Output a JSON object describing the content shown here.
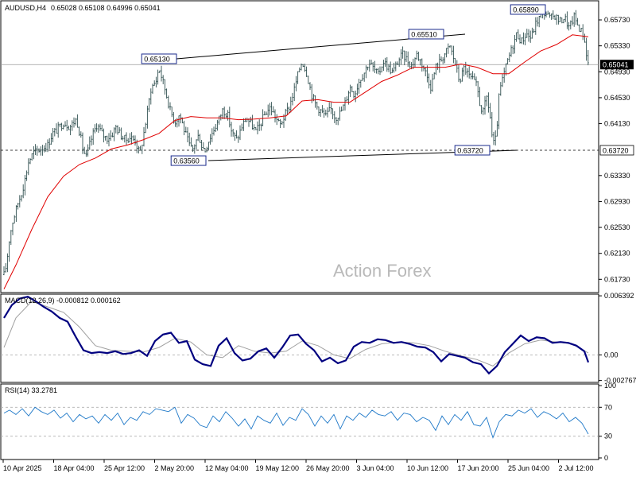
{
  "header": {
    "symbol_label": "AUDUSD,H4",
    "ohlc_label": "0.65028 0.65108 0.64996 0.65041"
  },
  "watermark": "Action Forex",
  "colors": {
    "candles": "#2f4f4f",
    "ma": "#e00000",
    "macd_line": "#000080",
    "macd_signal": "#a0a0a0",
    "rsi": "#1e78c8",
    "trendline": "#000000",
    "current_price_bg": "#000000"
  },
  "chart_data": [
    {
      "type": "candlestick",
      "panel": "price",
      "title": "AUDUSD,H4",
      "x_labels": [
        "10 Apr 2025",
        "18 Apr 04:00",
        "25 Apr 12:00",
        "2 May 20:00",
        "12 May 04:00",
        "19 May 12:00",
        "26 May 20:00",
        "3 Jun 04:00",
        "10 Jun 12:00",
        "17 Jun 20:00",
        "25 Jun 04:00",
        "2 Jul 12:00"
      ],
      "y_ticks": [
        "0.65730",
        "0.65330",
        "0.64930",
        "0.64530",
        "0.64130",
        "0.63330",
        "0.62930",
        "0.62530",
        "0.62130",
        "0.61730"
      ],
      "ylim": [
        0.6155,
        0.66
      ],
      "close_path_x": [
        0,
        4,
        8,
        12,
        16,
        22,
        28,
        32,
        36,
        42,
        48,
        54,
        60,
        66,
        72,
        80,
        88,
        96,
        100,
        104,
        108,
        114,
        118,
        122,
        128,
        134,
        140,
        146,
        152,
        158,
        164,
        170,
        176,
        180,
        184,
        190,
        196,
        200,
        204,
        208,
        214,
        220,
        226,
        232,
        238,
        242,
        246,
        250,
        254,
        258,
        262,
        268,
        274,
        280,
        286,
        292,
        298,
        304,
        310,
        316,
        322,
        328,
        334,
        340,
        346,
        352,
        358,
        364,
        370,
        376,
        380,
        386,
        392,
        398,
        404,
        410,
        416,
        422,
        428,
        434,
        440,
        446,
        452,
        458,
        464,
        470,
        476,
        482,
        488,
        494,
        500,
        506,
        512,
        518,
        524,
        530,
        536,
        542,
        548,
        554,
        560,
        566,
        572,
        578,
        584,
        590,
        596,
        600,
        604,
        608,
        612,
        616,
        620,
        624,
        628,
        632,
        638,
        644,
        650,
        656,
        662,
        668,
        674,
        680,
        686,
        692,
        698,
        704,
        710,
        716,
        722,
        728,
        734,
        740
      ],
      "close_path_y": [
        0.6168,
        0.6175,
        0.6195,
        0.6238,
        0.6262,
        0.6288,
        0.631,
        0.633,
        0.6355,
        0.6368,
        0.6372,
        0.6376,
        0.638,
        0.6398,
        0.6404,
        0.6415,
        0.6408,
        0.642,
        0.64,
        0.6376,
        0.636,
        0.6386,
        0.64,
        0.6412,
        0.6398,
        0.639,
        0.6395,
        0.6408,
        0.6395,
        0.6388,
        0.6392,
        0.6387,
        0.6365,
        0.6392,
        0.642,
        0.6468,
        0.6478,
        0.65,
        0.6482,
        0.6464,
        0.6434,
        0.6415,
        0.6428,
        0.6402,
        0.638,
        0.6372,
        0.6385,
        0.6395,
        0.6378,
        0.6372,
        0.6386,
        0.6402,
        0.6416,
        0.6434,
        0.6428,
        0.6398,
        0.6388,
        0.6408,
        0.6422,
        0.6412,
        0.64,
        0.6414,
        0.643,
        0.6438,
        0.6424,
        0.641,
        0.6425,
        0.644,
        0.6465,
        0.6495,
        0.651,
        0.649,
        0.6458,
        0.644,
        0.6432,
        0.6424,
        0.6436,
        0.6422,
        0.643,
        0.6445,
        0.647,
        0.6458,
        0.648,
        0.6492,
        0.6508,
        0.6498,
        0.6488,
        0.651,
        0.65,
        0.6492,
        0.6508,
        0.652,
        0.6512,
        0.6502,
        0.652,
        0.6508,
        0.649,
        0.647,
        0.65,
        0.651,
        0.6522,
        0.6532,
        0.6508,
        0.6478,
        0.65,
        0.6486,
        0.6478,
        0.647,
        0.644,
        0.643,
        0.6455,
        0.643,
        0.638,
        0.639,
        0.646,
        0.648,
        0.6508,
        0.653,
        0.6552,
        0.654,
        0.6552,
        0.6545,
        0.6568,
        0.658,
        0.6585,
        0.6575,
        0.658,
        0.657,
        0.6578,
        0.656,
        0.6578,
        0.6562,
        0.655,
        0.6504
      ],
      "ma_path_x": [
        5,
        20,
        40,
        60,
        80,
        100,
        120,
        140,
        160,
        180,
        200,
        220,
        240,
        260,
        280,
        300,
        320,
        340,
        360,
        380,
        400,
        420,
        440,
        460,
        480,
        500,
        520,
        540,
        560,
        580,
        600,
        620,
        640,
        660,
        680,
        700,
        720,
        740
      ],
      "ma_path_y": [
        0.6158,
        0.6195,
        0.625,
        0.63,
        0.6332,
        0.635,
        0.636,
        0.6374,
        0.638,
        0.6388,
        0.6398,
        0.6418,
        0.6424,
        0.6422,
        0.6422,
        0.6419,
        0.642,
        0.6422,
        0.6425,
        0.6448,
        0.645,
        0.6446,
        0.6446,
        0.6462,
        0.6478,
        0.6488,
        0.65,
        0.65,
        0.65,
        0.6505,
        0.65,
        0.649,
        0.649,
        0.6508,
        0.6525,
        0.6535,
        0.655,
        0.6547
      ],
      "trendlines": [
        {
          "from": [
            222,
            0.6513
          ],
          "to": [
            585,
            0.6551
          ]
        },
        {
          "from": [
            262,
            0.6356
          ],
          "to": [
            650,
            0.6372
          ]
        }
      ],
      "level_labels": [
        {
          "text": "0.65130",
          "x": 222,
          "y": 0.6513
        },
        {
          "text": "0.63560",
          "x": 259,
          "y": 0.6356
        },
        {
          "text": "0.65510",
          "x": 558,
          "y": 0.6551
        },
        {
          "text": "0.63720",
          "x": 616,
          "y": 0.6372
        },
        {
          "text": "0.65890",
          "x": 686,
          "y": 0.6589
        }
      ],
      "current_price": {
        "value": 0.65041,
        "label": "0.65041"
      },
      "support_line": {
        "value": 0.6372,
        "label": "0.63720"
      }
    },
    {
      "type": "line",
      "panel": "macd",
      "title": "MACD(12,26,9) -0.000812 0.000162",
      "y_ticks": [
        "0.006392",
        "0.00",
        "-0.002767"
      ],
      "ylim": [
        -0.0028,
        0.0064
      ],
      "main_x": [
        5,
        15,
        25,
        35,
        45,
        55,
        65,
        75,
        85,
        95,
        105,
        115,
        125,
        135,
        145,
        155,
        165,
        175,
        185,
        195,
        205,
        215,
        225,
        235,
        245,
        255,
        265,
        275,
        285,
        295,
        305,
        315,
        325,
        335,
        345,
        355,
        365,
        375,
        385,
        395,
        405,
        415,
        425,
        435,
        445,
        455,
        465,
        475,
        485,
        495,
        505,
        515,
        525,
        535,
        545,
        555,
        565,
        575,
        585,
        595,
        605,
        615,
        625,
        635,
        645,
        655,
        665,
        675,
        685,
        695,
        705,
        715,
        725,
        735,
        740
      ],
      "main": [
        0.004,
        0.0054,
        0.0061,
        0.0063,
        0.0058,
        0.0052,
        0.0047,
        0.004,
        0.0036,
        0.002,
        0.0005,
        0.0002,
        0.0003,
        0.0002,
        0.0004,
        0.0001,
        0.0002,
        0.0005,
        -0.0001,
        0.0015,
        0.0022,
        0.0024,
        0.0013,
        0.0015,
        -0.0005,
        -0.001,
        -0.0012,
        0.001,
        0.0018,
        0.0002,
        -0.0006,
        -0.0004,
        0.0004,
        0.0007,
        -0.0003,
        0.0008,
        0.0021,
        0.0022,
        0.0012,
        0.0005,
        -0.0007,
        -0.0003,
        -0.0009,
        -0.0006,
        0.0009,
        0.0014,
        0.0013,
        0.0017,
        0.0016,
        0.0013,
        0.0014,
        0.0012,
        0.0009,
        0.0008,
        0.0003,
        -0.0007,
        0.0001,
        -0.0001,
        -0.0003,
        -0.0008,
        -0.001,
        -0.002,
        -0.0012,
        0.0003,
        0.0012,
        0.0021,
        0.0015,
        0.0019,
        0.0018,
        0.0013,
        0.0014,
        0.0013,
        0.001,
        0.0004,
        -0.0008
      ],
      "signal_x": [
        5,
        20,
        40,
        60,
        80,
        100,
        120,
        140,
        160,
        180,
        200,
        220,
        240,
        260,
        280,
        300,
        320,
        340,
        360,
        380,
        400,
        420,
        440,
        460,
        480,
        500,
        520,
        540,
        560,
        580,
        600,
        620,
        640,
        660,
        680,
        700,
        720,
        740
      ],
      "signal": [
        0.0008,
        0.004,
        0.0058,
        0.0052,
        0.0046,
        0.003,
        0.001,
        0.0005,
        0.0004,
        0.0003,
        0.0008,
        0.0018,
        0.0014,
        0.0,
        -0.0003,
        0.001,
        0.0004,
        0.0002,
        0.0004,
        0.0015,
        0.001,
        0.0,
        -0.0004,
        0.0006,
        0.0012,
        0.0014,
        0.0013,
        0.001,
        0.0004,
        -0.0001,
        -0.0005,
        -0.0012,
        0.0002,
        0.0012,
        0.0016,
        0.0014,
        0.0012,
        0.0002
      ]
    },
    {
      "type": "line",
      "panel": "rsi",
      "title": "RSI(14) 33.2781",
      "y_ticks": [
        "100",
        "70",
        "30",
        "0"
      ],
      "ylim": [
        0,
        100
      ],
      "levels": [
        70,
        30
      ],
      "x": [
        5,
        12,
        20,
        28,
        36,
        44,
        52,
        60,
        68,
        76,
        84,
        92,
        100,
        108,
        116,
        124,
        132,
        140,
        148,
        156,
        164,
        172,
        180,
        188,
        196,
        204,
        212,
        220,
        228,
        236,
        244,
        252,
        260,
        268,
        276,
        284,
        292,
        300,
        308,
        316,
        324,
        332,
        340,
        348,
        356,
        364,
        372,
        380,
        388,
        396,
        404,
        412,
        420,
        428,
        436,
        444,
        452,
        460,
        468,
        476,
        484,
        492,
        500,
        508,
        516,
        524,
        532,
        540,
        548,
        556,
        564,
        572,
        580,
        588,
        596,
        604,
        612,
        620,
        628,
        636,
        644,
        652,
        660,
        668,
        676,
        684,
        692,
        700,
        708,
        716,
        724,
        732,
        740
      ],
      "values": [
        62,
        66,
        60,
        68,
        58,
        70,
        64,
        60,
        66,
        55,
        62,
        50,
        60,
        54,
        58,
        48,
        60,
        52,
        62,
        46,
        56,
        52,
        64,
        60,
        68,
        66,
        64,
        70,
        48,
        60,
        55,
        45,
        42,
        58,
        50,
        64,
        55,
        44,
        54,
        40,
        58,
        52,
        48,
        62,
        45,
        56,
        52,
        68,
        60,
        44,
        58,
        48,
        60,
        40,
        58,
        52,
        62,
        56,
        66,
        60,
        58,
        64,
        52,
        62,
        60,
        50,
        56,
        52,
        38,
        58,
        46,
        60,
        52,
        64,
        46,
        44,
        56,
        28,
        50,
        60,
        58,
        66,
        62,
        68,
        56,
        64,
        60,
        54,
        62,
        50,
        56,
        48,
        33
      ]
    }
  ],
  "rsi_current": 33.2781
}
